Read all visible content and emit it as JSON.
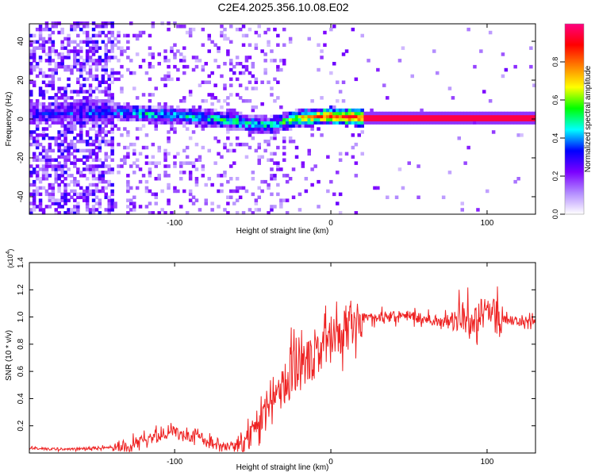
{
  "title": "C2E4.2025.356.10.08.E02",
  "chart_data": [
    {
      "type": "heatmap",
      "xlabel": "Height of straight line (km)",
      "ylabel": "Frequency (Hz)",
      "xlim": [
        -193,
        131
      ],
      "ylim": [
        -49,
        49
      ],
      "xticks": [
        -100,
        0,
        100
      ],
      "yticks": [
        -40,
        -20,
        0,
        20,
        40
      ],
      "colorbar": {
        "label": "Normalized spectral amplitude",
        "range": [
          0,
          1
        ],
        "ticks": [
          "0.0",
          "0.2",
          "0.4",
          "0.6",
          "0.8"
        ],
        "colors": [
          "#ffffff",
          "#b38cff",
          "#7b00ff",
          "#0000ff",
          "#00ffff",
          "#00ff00",
          "#ffff00",
          "#ff8000",
          "#ff0000",
          "#ff0080"
        ]
      },
      "band": [
        {
          "x": -193,
          "f": 2,
          "amp": 0.25
        },
        {
          "x": -140,
          "f": 3,
          "amp": 0.35
        },
        {
          "x": -120,
          "f": 2,
          "amp": 0.45
        },
        {
          "x": -100,
          "f": 1,
          "amp": 0.45
        },
        {
          "x": -80,
          "f": 0,
          "amp": 0.45
        },
        {
          "x": -60,
          "f": -2,
          "amp": 0.5
        },
        {
          "x": -40,
          "f": -4,
          "amp": 0.45
        },
        {
          "x": -30,
          "f": -2,
          "amp": 0.55
        },
        {
          "x": -20,
          "f": 0,
          "amp": 0.7
        },
        {
          "x": 0,
          "f": 1,
          "amp": 0.85
        },
        {
          "x": 20,
          "f": 0,
          "amp": 0.95
        },
        {
          "x": 131,
          "f": 0,
          "amp": 0.95
        }
      ]
    },
    {
      "type": "line",
      "xlabel": "Height of straight line (km)",
      "ylabel": "SNR (10 * v/v)",
      "scale_label": "(x10",
      "scale_exponent": "4",
      "xlim": [
        -193,
        131
      ],
      "ylim": [
        0,
        1.4
      ],
      "xticks": [
        -100,
        0,
        100
      ],
      "yticks": [
        0.2,
        0.4,
        0.6,
        0.8,
        1.0,
        1.2,
        1.4
      ],
      "series": [
        {
          "name": "SNR",
          "color": "#ee2222",
          "x": [
            -193,
            -160,
            -145,
            -130,
            -120,
            -110,
            -100,
            -95,
            -90,
            -85,
            -80,
            -75,
            -70,
            -65,
            -60,
            -55,
            -50,
            -45,
            -40,
            -35,
            -30,
            -25,
            -20,
            -15,
            -10,
            -5,
            0,
            5,
            10,
            15,
            20,
            25,
            30,
            40,
            50,
            60,
            70,
            80,
            90,
            95,
            100,
            105,
            110,
            120,
            131
          ],
          "y": [
            0.03,
            0.03,
            0.04,
            0.06,
            0.09,
            0.13,
            0.15,
            0.13,
            0.11,
            0.16,
            0.08,
            0.06,
            0.05,
            0.05,
            0.04,
            0.08,
            0.15,
            0.25,
            0.35,
            0.45,
            0.52,
            0.58,
            0.62,
            0.68,
            0.72,
            0.78,
            0.82,
            0.88,
            0.92,
            0.97,
            1.0,
            1.0,
            1.0,
            1.0,
            1.01,
            0.98,
            0.97,
            0.98,
            0.99,
            1.0,
            1.04,
            1.0,
            0.98,
            0.97,
            0.97
          ]
        }
      ]
    }
  ]
}
